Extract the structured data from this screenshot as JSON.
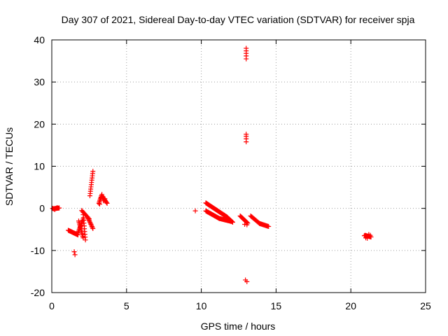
{
  "chart_data": {
    "type": "scatter",
    "title": "Day 307 of 2021, Sidereal Day-to-day VTEC variation (SDTVAR) for receiver spja",
    "xlabel": "GPS time / hours",
    "ylabel": "SDTVAR / TECUs",
    "xlim": [
      0,
      25
    ],
    "ylim": [
      -20,
      40
    ],
    "xticks": [
      0,
      5,
      10,
      15,
      20,
      25
    ],
    "yticks": [
      -20,
      -10,
      0,
      10,
      20,
      30,
      40
    ],
    "grid": true,
    "marker": "plus",
    "point_color": "#ff0000",
    "segments": [
      {
        "x0": 0.1,
        "x1": 0.5,
        "y0": -0.1,
        "y1": 0.1,
        "n": 14
      },
      {
        "x0": 1.1,
        "x1": 1.75,
        "y0": -5.2,
        "y1": -6.3,
        "n": 18
      },
      {
        "x0": 1.75,
        "x1": 2.1,
        "y0": -5.8,
        "y1": -2.5,
        "n": 12
      },
      {
        "x0": 1.8,
        "x1": 2.1,
        "y0": -3.0,
        "y1": -7.0,
        "n": 12
      },
      {
        "x0": 2.1,
        "x1": 2.25,
        "y0": -1.5,
        "y1": -7.5,
        "n": 10
      },
      {
        "x0": 2.0,
        "x1": 2.5,
        "y0": -0.5,
        "y1": -2.5,
        "n": 10
      },
      {
        "x0": 2.45,
        "x1": 2.75,
        "y0": -2.5,
        "y1": -4.8,
        "n": 10
      },
      {
        "x0": 2.55,
        "x1": 2.75,
        "y0": 3.0,
        "y1": 8.8,
        "n": 12
      },
      {
        "x0": 3.15,
        "x1": 3.35,
        "y0": 1.2,
        "y1": 3.3,
        "n": 8
      },
      {
        "x0": 3.35,
        "x1": 3.7,
        "y0": 3.0,
        "y1": 1.2,
        "n": 10
      },
      {
        "x0": 10.3,
        "x1": 11.7,
        "y0": 1.3,
        "y1": -2.0,
        "n": 36
      },
      {
        "x0": 10.3,
        "x1": 11.2,
        "y0": -0.6,
        "y1": -2.4,
        "n": 24
      },
      {
        "x0": 11.2,
        "x1": 12.0,
        "y0": -2.4,
        "y1": -3.1,
        "n": 20
      },
      {
        "x0": 11.7,
        "x1": 12.1,
        "y0": -2.0,
        "y1": -3.3,
        "n": 12
      },
      {
        "x0": 12.6,
        "x1": 13.1,
        "y0": -1.8,
        "y1": -3.5,
        "n": 14
      },
      {
        "x0": 13.3,
        "x1": 13.9,
        "y0": -1.8,
        "y1": -3.6,
        "n": 14
      },
      {
        "x0": 13.9,
        "x1": 14.5,
        "y0": -3.6,
        "y1": -4.3,
        "n": 14
      },
      {
        "x0": 20.95,
        "x1": 21.35,
        "y0": -6.4,
        "y1": -6.8,
        "n": 12
      }
    ],
    "points": [
      {
        "x": 0.05,
        "y": 0.0
      },
      {
        "x": 0.2,
        "y": -0.3
      },
      {
        "x": 0.35,
        "y": 0.2
      },
      {
        "x": 1.5,
        "y": -10.3
      },
      {
        "x": 1.55,
        "y": -11.0
      },
      {
        "x": 3.2,
        "y": 1.0
      },
      {
        "x": 3.3,
        "y": 2.5
      },
      {
        "x": 3.45,
        "y": 1.8
      },
      {
        "x": 3.55,
        "y": 2.3
      },
      {
        "x": 9.6,
        "y": -0.6
      },
      {
        "x": 12.9,
        "y": -3.8
      },
      {
        "x": 13.05,
        "y": -3.9
      },
      {
        "x": 13.0,
        "y": 35.5
      },
      {
        "x": 13.0,
        "y": 36.2
      },
      {
        "x": 13.0,
        "y": 36.8
      },
      {
        "x": 13.0,
        "y": 37.4
      },
      {
        "x": 13.0,
        "y": 38.0
      },
      {
        "x": 13.0,
        "y": 15.8
      },
      {
        "x": 13.0,
        "y": 16.5
      },
      {
        "x": 13.0,
        "y": 17.1
      },
      {
        "x": 13.0,
        "y": 17.6
      },
      {
        "x": 12.95,
        "y": -17.0
      },
      {
        "x": 13.05,
        "y": -17.4
      },
      {
        "x": 20.9,
        "y": -6.5
      },
      {
        "x": 21.0,
        "y": -7.0
      },
      {
        "x": 21.1,
        "y": -7.1
      },
      {
        "x": 21.2,
        "y": -6.2
      },
      {
        "x": 21.3,
        "y": -6.4
      }
    ]
  }
}
